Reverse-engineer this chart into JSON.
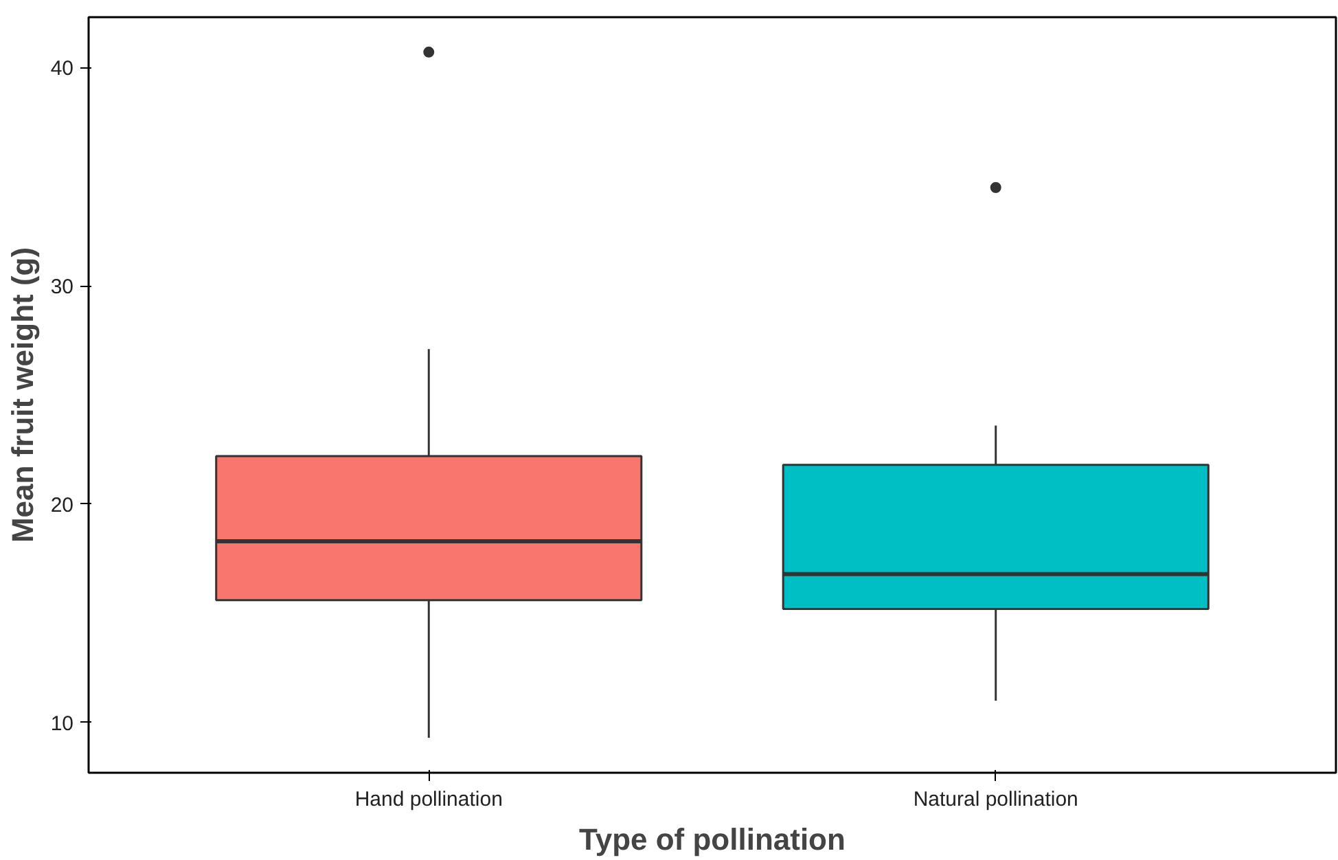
{
  "chart_data": {
    "type": "box",
    "xlabel": "Type of pollination",
    "ylabel": "Mean fruit weight (g)",
    "categories": [
      "Hand pollination",
      "Natural pollination"
    ],
    "colors": [
      "#f8766d",
      "#00bfc4"
    ],
    "boxes": [
      {
        "low": 9.3,
        "q1": 15.6,
        "median": 18.3,
        "q3": 22.2,
        "high": 27.1,
        "outliers": [
          40.7
        ]
      },
      {
        "low": 11.0,
        "q1": 15.2,
        "median": 16.8,
        "q3": 21.8,
        "high": 23.6,
        "outliers": [
          34.5
        ]
      }
    ],
    "ylim": [
      7.7,
      42.3
    ],
    "yticks": [
      10,
      20,
      30,
      40
    ],
    "grid": false
  }
}
